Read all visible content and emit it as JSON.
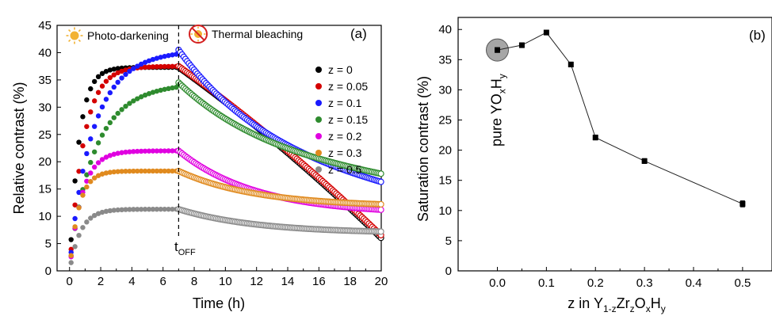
{
  "chart_data": [
    {
      "type": "scatter",
      "panel_label": "(a)",
      "xlabel": "Time (h)",
      "ylabel": "Relative contrast (%)",
      "xlim": [
        -0.8,
        20
      ],
      "ylim": [
        0,
        45
      ],
      "xticks": [
        "0",
        "2",
        "4",
        "6",
        "8",
        "10",
        "12",
        "14",
        "16",
        "18",
        "20"
      ],
      "yticks": [
        "0",
        "5",
        "10",
        "15",
        "20",
        "25",
        "30",
        "35",
        "40",
        "45"
      ],
      "t_off": 7,
      "t_off_label": "t",
      "t_off_sub": "OFF",
      "phase_labels": [
        "Photo-darkening",
        "Thermal bleaching"
      ],
      "legend_position": "right",
      "series": [
        {
          "name": "z = 0",
          "color": "#000000",
          "saturation": 37.3,
          "rise_tau": 0.6,
          "end_value": 6.0,
          "decay_shape": "fast"
        },
        {
          "name": "z = 0.05",
          "color": "#d40000",
          "saturation": 37.5,
          "rise_tau": 0.9,
          "end_value": 6.5,
          "decay_shape": "fast"
        },
        {
          "name": "z = 0.1",
          "color": "#1a1aff",
          "saturation": 40.5,
          "rise_tau": 1.5,
          "end_value": 16.3,
          "decay_shape": "slow"
        },
        {
          "name": "z = 0.15",
          "color": "#2e8b2e",
          "saturation": 34.5,
          "rise_tau": 1.6,
          "end_value": 17.8,
          "decay_shape": "slow"
        },
        {
          "name": "z = 0.2",
          "color": "#e000e0",
          "saturation": 22.0,
          "rise_tau": 0.8,
          "end_value": 11.2,
          "decay_shape": "medium"
        },
        {
          "name": "z = 0.3",
          "color": "#e08a1e",
          "saturation": 18.3,
          "rise_tau": 0.6,
          "end_value": 12.2,
          "decay_shape": "medium"
        },
        {
          "name": "z = 0.5",
          "color": "#8a8a8a",
          "saturation": 11.3,
          "rise_tau": 0.7,
          "end_value": 7.2,
          "decay_shape": "medium"
        }
      ]
    },
    {
      "type": "line",
      "panel_label": "(b)",
      "xlabel_parts": [
        "z in Y",
        "1-z",
        "Zr",
        "z",
        "O",
        "x",
        "H",
        "y"
      ],
      "ylabel": "Saturation contrast (%)",
      "xlim": [
        -0.08,
        0.56
      ],
      "ylim": [
        0,
        42
      ],
      "xticks": [
        "0.0",
        "0.1",
        "0.2",
        "0.3",
        "0.4",
        "0.5"
      ],
      "yticks": [
        "0",
        "5",
        "10",
        "15",
        "20",
        "25",
        "30",
        "35",
        "40"
      ],
      "annotation_parts": [
        "pure YO",
        "x",
        "H",
        "y"
      ],
      "points": {
        "x": [
          0.0,
          0.05,
          0.1,
          0.15,
          0.2,
          0.3,
          0.5
        ],
        "y": [
          36.6,
          37.4,
          39.5,
          34.2,
          22.1,
          18.2,
          11.1
        ],
        "err": [
          0.4,
          0.4,
          0.4,
          0.4,
          0.4,
          0.4,
          0.5
        ]
      }
    }
  ]
}
